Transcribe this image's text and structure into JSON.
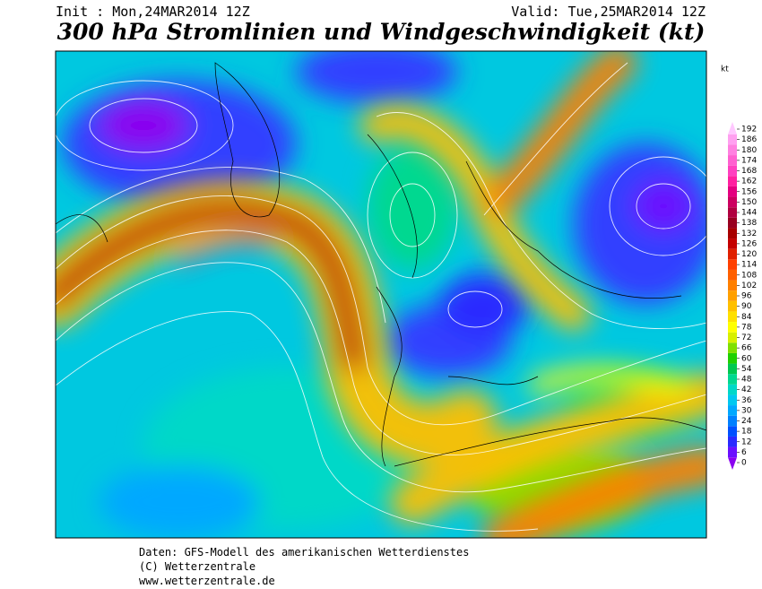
{
  "header": {
    "init": "Init : Mon,24MAR2014 12Z",
    "valid": "Valid: Tue,25MAR2014 12Z",
    "title": "300 hPa Stromlinien und Windgeschwindigkeit (kt)"
  },
  "colorbar": {
    "unit": "kt",
    "ticks": [
      0,
      6,
      12,
      18,
      24,
      30,
      36,
      42,
      48,
      54,
      60,
      66,
      72,
      78,
      84,
      90,
      96,
      102,
      108,
      114,
      120,
      126,
      132,
      138,
      144,
      150,
      156,
      162,
      168,
      174,
      180,
      186,
      192
    ],
    "colors": [
      "#8a00f0",
      "#6a10ff",
      "#2a2aff",
      "#0050ff",
      "#0080ff",
      "#00a8ff",
      "#00c8f0",
      "#00d8c8",
      "#00d890",
      "#00c850",
      "#20d000",
      "#80e000",
      "#d8f000",
      "#ffff00",
      "#ffe000",
      "#ffc000",
      "#ffa000",
      "#ff8000",
      "#ff6000",
      "#ff4000",
      "#e02000",
      "#c40000",
      "#a80000",
      "#980020",
      "#b00040",
      "#cc0060",
      "#e40080",
      "#ff20a0",
      "#ff40c0",
      "#ff60d0",
      "#ff80e0",
      "#ffa0f0",
      "#ffc8ff"
    ]
  },
  "footer": {
    "line1": "Daten: GFS-Modell des amerikanischen Wetterdienstes",
    "line2": "(C) Wetterzentrale",
    "line3": "www.wetterzentrale.de"
  }
}
